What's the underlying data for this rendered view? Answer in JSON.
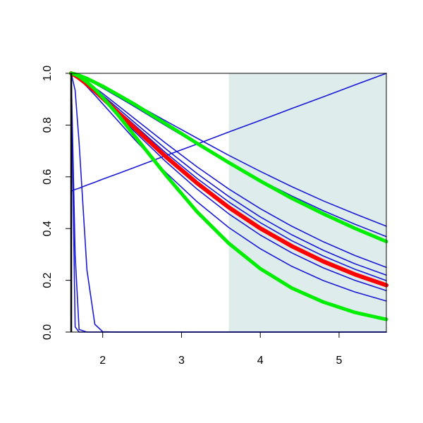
{
  "chart_data": {
    "type": "line",
    "xlim": [
      1.6,
      5.6
    ],
    "ylim": [
      0,
      1
    ],
    "xticks": [
      2,
      3,
      4,
      5
    ],
    "yticks": [
      {
        "value": 0,
        "label": "0.0"
      },
      {
        "value": 0.2,
        "label": "0.2"
      },
      {
        "value": 0.4,
        "label": "0.4"
      },
      {
        "value": 0.6,
        "label": "0.6"
      },
      {
        "value": 0.8,
        "label": "0.8"
      },
      {
        "value": 1,
        "label": "1.0"
      }
    ],
    "shaded_xrange": [
      3.6,
      5.6
    ],
    "shade_color": "#deecec",
    "x": [
      1.6,
      1.65,
      1.7,
      1.8,
      1.9,
      2.0,
      2.2,
      2.4,
      2.8,
      3.2,
      3.6,
      4.0,
      4.4,
      4.8,
      5.2,
      5.6
    ],
    "series": [
      {
        "color": "#1a1ad6",
        "width": 1.6,
        "values": [
          1,
          0.02,
          0,
          0,
          0,
          0,
          0,
          0,
          0,
          0,
          0,
          0,
          0,
          0,
          0,
          0
        ]
      },
      {
        "color": "#1a1ad6",
        "width": 1.6,
        "values": [
          1,
          0.3,
          0.01,
          0,
          0,
          0,
          0,
          0,
          0,
          0,
          0,
          0,
          0,
          0,
          0,
          0
        ]
      },
      {
        "color": "#1a1ad6",
        "width": 1.6,
        "values": [
          1,
          0.934,
          0.733,
          0.239,
          0.03,
          0.0014,
          0,
          0,
          0,
          0,
          0,
          0,
          0,
          0,
          0,
          0
        ]
      },
      {
        "color": "#1a1ad6",
        "width": 1.6,
        "values": [
          0.545,
          0.551,
          0.556,
          0.568,
          0.579,
          0.591,
          0.613,
          0.636,
          0.682,
          0.727,
          0.773,
          0.818,
          0.864,
          0.909,
          0.955,
          1.0
        ]
      },
      {
        "color": "#1a1ad6",
        "width": 1.6,
        "values": [
          1,
          0.996,
          0.99,
          0.978,
          0.964,
          0.949,
          0.917,
          0.884,
          0.816,
          0.749,
          0.683,
          0.621,
          0.562,
          0.507,
          0.457,
          0.409
        ]
      },
      {
        "color": "#1a1ad6",
        "width": 1.6,
        "values": [
          1,
          0.996,
          0.989,
          0.975,
          0.96,
          0.943,
          0.908,
          0.872,
          0.798,
          0.725,
          0.654,
          0.587,
          0.526,
          0.469,
          0.417,
          0.369
        ]
      },
      {
        "color": "#1a1ad6",
        "width": 1.6,
        "values": [
          1,
          0.994,
          0.985,
          0.966,
          0.944,
          0.922,
          0.874,
          0.826,
          0.73,
          0.638,
          0.553,
          0.477,
          0.409,
          0.349,
          0.296,
          0.25
        ]
      },
      {
        "color": "#1a1ad6",
        "width": 1.6,
        "values": [
          1,
          0.993,
          0.984,
          0.963,
          0.939,
          0.915,
          0.863,
          0.811,
          0.708,
          0.612,
          0.524,
          0.445,
          0.376,
          0.316,
          0.264,
          0.22
        ]
      },
      {
        "color": "#1a1ad6",
        "width": 1.6,
        "values": [
          1,
          0.993,
          0.983,
          0.96,
          0.935,
          0.909,
          0.855,
          0.801,
          0.693,
          0.593,
          0.503,
          0.423,
          0.353,
          0.294,
          0.243,
          0.199
        ]
      },
      {
        "color": "#1a1ad6",
        "width": 1.6,
        "values": [
          1,
          0.992,
          0.981,
          0.955,
          0.927,
          0.898,
          0.837,
          0.776,
          0.659,
          0.552,
          0.457,
          0.375,
          0.306,
          0.248,
          0.2,
          0.16
        ]
      },
      {
        "color": "#1a1ad6",
        "width": 1.6,
        "values": [
          1,
          0.99,
          0.978,
          0.948,
          0.916,
          0.882,
          0.814,
          0.746,
          0.617,
          0.503,
          0.404,
          0.322,
          0.254,
          0.199,
          0.155,
          0.12
        ]
      },
      {
        "color": "#ff0000",
        "width": 6,
        "values": [
          1,
          0.992,
          0.982,
          0.958,
          0.932,
          0.904,
          0.847,
          0.79,
          0.678,
          0.575,
          0.482,
          0.401,
          0.332,
          0.273,
          0.223,
          0.181
        ]
      },
      {
        "color": "#00ee00",
        "width": 5,
        "values": [
          1,
          0.997,
          0.992,
          0.98,
          0.965,
          0.95,
          0.916,
          0.881,
          0.805,
          0.729,
          0.655,
          0.584,
          0.517,
          0.457,
          0.401,
          0.35
        ]
      },
      {
        "color": "#00ee00",
        "width": 5,
        "values": [
          1,
          0.996,
          0.988,
          0.966,
          0.939,
          0.907,
          0.837,
          0.76,
          0.607,
          0.464,
          0.343,
          0.245,
          0.17,
          0.116,
          0.076,
          0.049
        ]
      }
    ]
  }
}
